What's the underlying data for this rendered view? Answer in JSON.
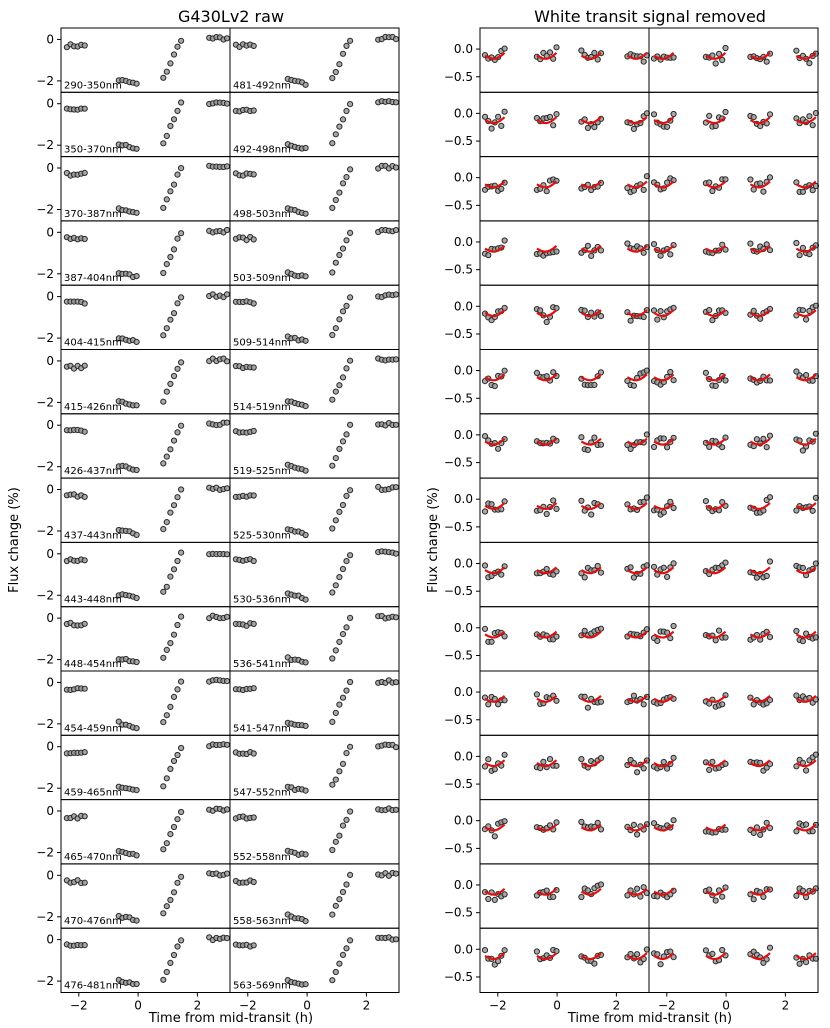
{
  "titles": {
    "left": "G430Lv2 raw",
    "right": "White transit signal removed"
  },
  "labels": {
    "ylabel": "Flux change (%)",
    "xlabel": "Time from mid-transit (h)"
  },
  "bands": {
    "col1": [
      "290-350nm",
      "350-370nm",
      "370-387nm",
      "387-404nm",
      "404-415nm",
      "415-426nm",
      "426-437nm",
      "437-443nm",
      "443-448nm",
      "448-454nm",
      "454-459nm",
      "459-465nm",
      "465-470nm",
      "470-476nm",
      "476-481nm"
    ],
    "col2": [
      "481-492nm",
      "492-498nm",
      "498-503nm",
      "503-509nm",
      "509-514nm",
      "514-519nm",
      "519-525nm",
      "525-530nm",
      "530-536nm",
      "536-541nm",
      "541-547nm",
      "547-552nm",
      "552-558nm",
      "558-563nm",
      "563-569nm"
    ]
  },
  "axes": {
    "xlim": [
      -2.6,
      3.1
    ],
    "xticks": [
      -2,
      0,
      2
    ],
    "xtick_labels": [
      "−2",
      "0",
      "2"
    ],
    "raw": {
      "ylim": [
        -2.55,
        0.55
      ],
      "yticks": [
        0,
        -2
      ],
      "ytick_labels": [
        "0",
        "−2"
      ]
    },
    "residual": {
      "ylim": [
        -0.78,
        0.38
      ],
      "yticks": [
        0.0,
        -0.5
      ],
      "ytick_labels": [
        "0.0",
        "−0.5"
      ]
    }
  },
  "chart_data": {
    "type": "scatter",
    "layout": "15 rows x 2 wavelength columns per group, two groups (raw, residual)",
    "orbits_time_h": [
      -2.1,
      -0.35,
      1.15,
      2.7
    ],
    "raw_orbit_baseline_pct": [
      -0.3,
      -1.95,
      -1.0,
      0.05
    ],
    "residual_model_range_pct": [
      -0.22,
      0.05
    ],
    "series": [
      {
        "name": "",
        "description_free": true
      }
    ]
  }
}
